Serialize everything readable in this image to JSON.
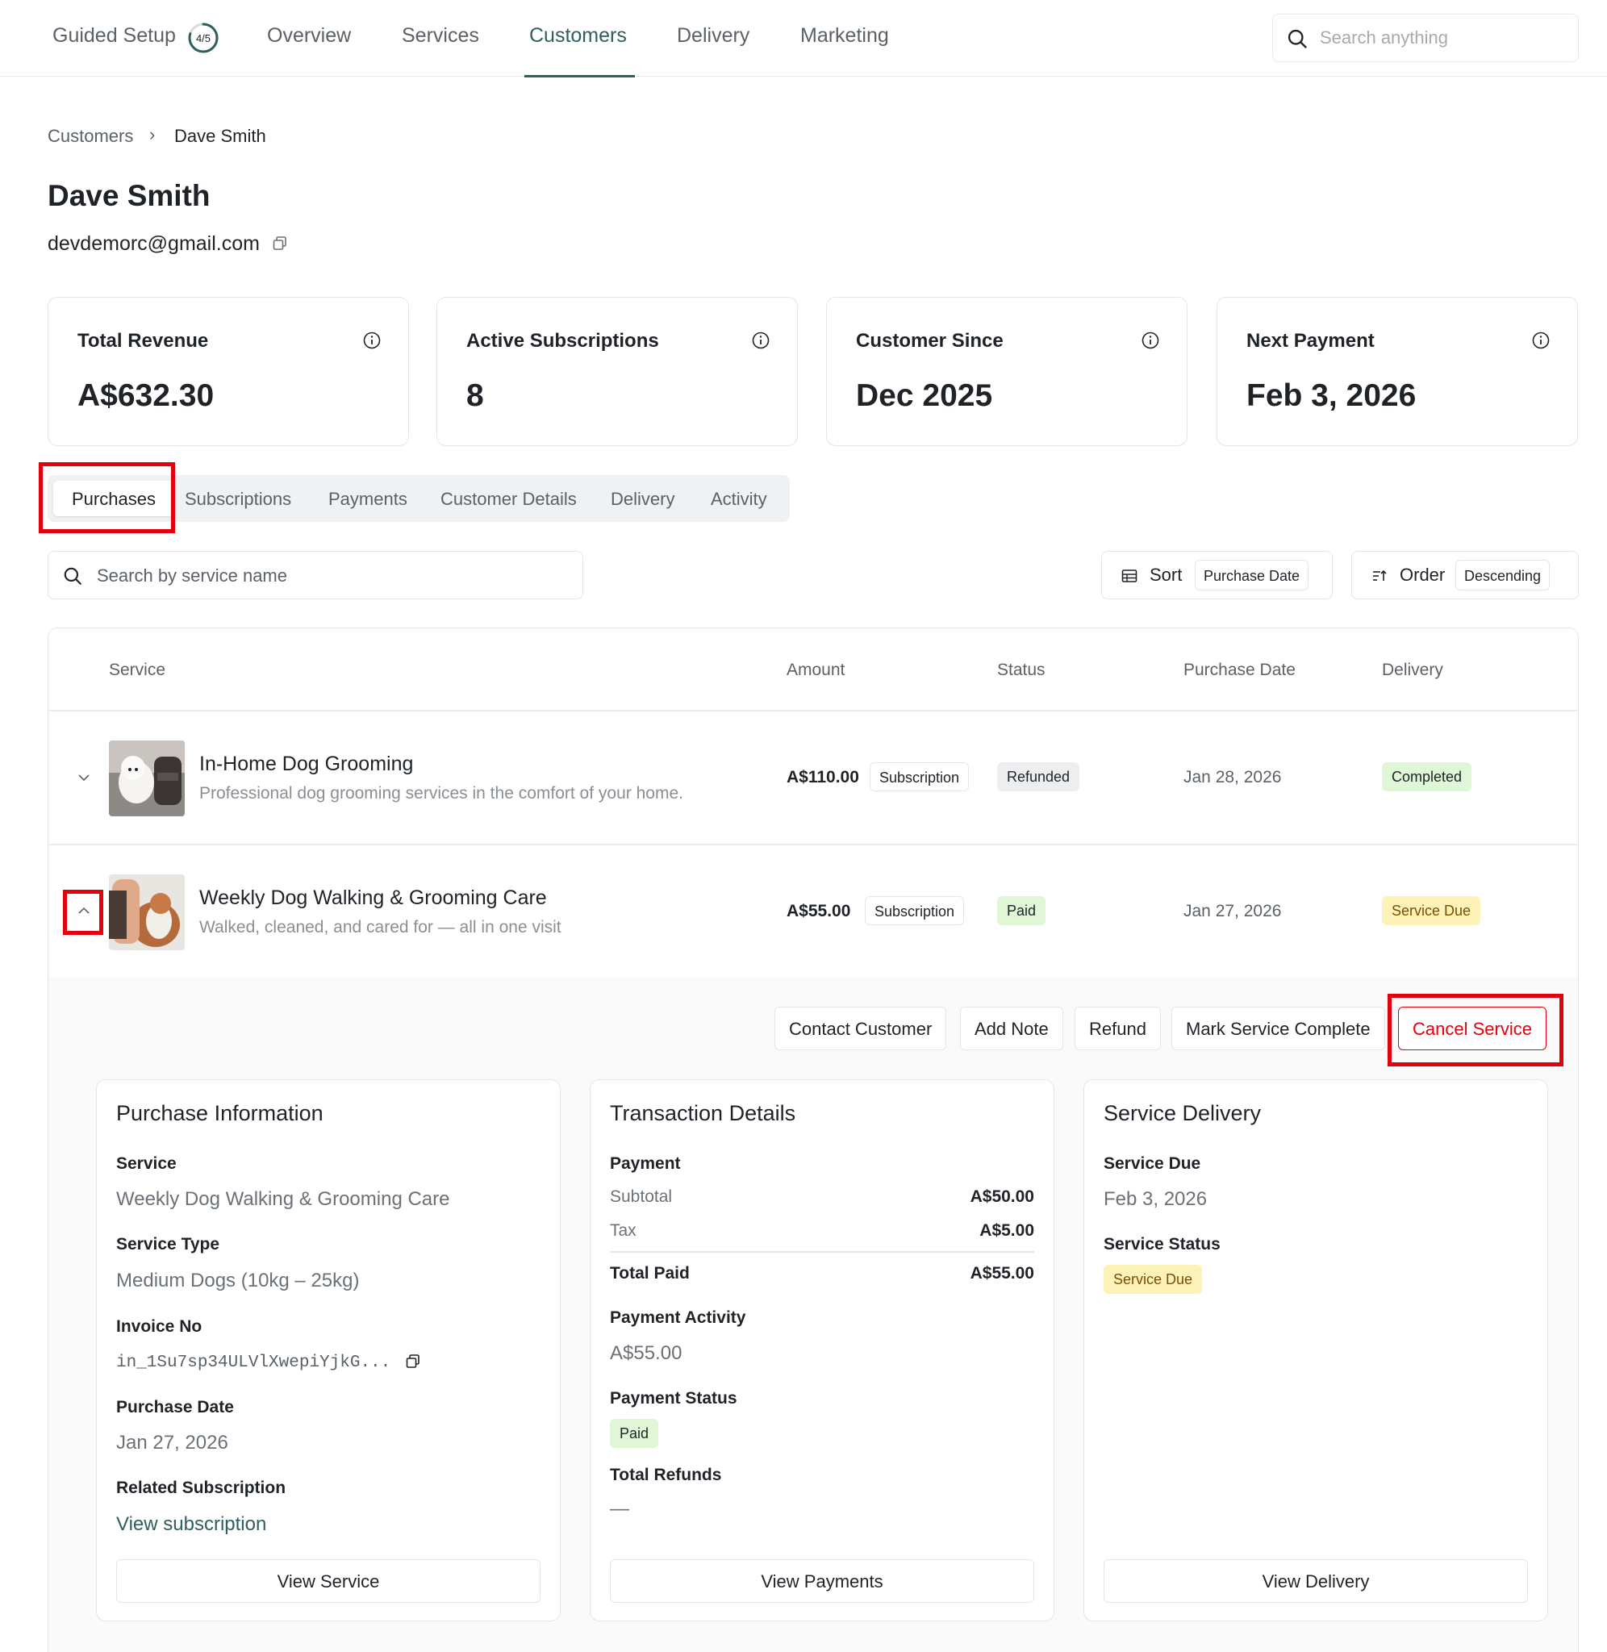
{
  "nav": {
    "guided_setup": "Guided Setup",
    "setup_progress": "4/5",
    "setup_fraction": 0.8,
    "items": [
      "Overview",
      "Services",
      "Customers",
      "Delivery",
      "Marketing"
    ],
    "active": "Customers",
    "search_placeholder": "Search anything"
  },
  "breadcrumb": {
    "parent": "Customers",
    "separator": "›",
    "current": "Dave Smith"
  },
  "customer": {
    "name": "Dave Smith",
    "email": "devdemorc@gmail.com"
  },
  "stats": [
    {
      "label": "Total Revenue",
      "value": "A$632.30"
    },
    {
      "label": "Active Subscriptions",
      "value": "8"
    },
    {
      "label": "Customer Since",
      "value": "Dec 2025"
    },
    {
      "label": "Next Payment",
      "value": "Feb 3, 2026"
    }
  ],
  "tabs": [
    "Purchases",
    "Subscriptions",
    "Payments",
    "Customer Details",
    "Delivery",
    "Activity"
  ],
  "active_tab": "Purchases",
  "search": {
    "placeholder": "Search by service name"
  },
  "sort": {
    "label": "Sort",
    "value": "Purchase Date"
  },
  "order": {
    "label": "Order",
    "value": "Descending"
  },
  "table": {
    "headers": [
      "Service",
      "Amount",
      "Status",
      "Purchase Date",
      "Delivery"
    ],
    "rows": [
      {
        "name": "In-Home Dog Grooming",
        "description": "Professional dog grooming services in the comfort of your home.",
        "amount": "A$110.00",
        "type": "Subscription",
        "status": "Refunded",
        "purchase_date": "Jan 28, 2026",
        "delivery": "Completed"
      },
      {
        "name": "Weekly Dog Walking & Grooming Care",
        "description": "Walked, cleaned, and cared for — all in one visit",
        "amount": "A$55.00",
        "type": "Subscription",
        "status": "Paid",
        "purchase_date": "Jan 27, 2026",
        "delivery": "Service Due"
      }
    ]
  },
  "actions": [
    "Contact Customer",
    "Add Note",
    "Refund",
    "Mark Service Complete",
    "Cancel Service"
  ],
  "purchase_info": {
    "title": "Purchase Information",
    "service_label": "Service",
    "service": "Weekly Dog Walking & Grooming Care",
    "type_label": "Service Type",
    "type": "Medium Dogs (10kg – 25kg)",
    "invoice_label": "Invoice No",
    "invoice": "in_1Su7sp34ULVlXwepiYjkG...",
    "date_label": "Purchase Date",
    "date": "Jan 27, 2026",
    "related_label": "Related Subscription",
    "related_link": "View subscription",
    "button": "View Service"
  },
  "transaction": {
    "title": "Transaction Details",
    "payment_label": "Payment",
    "subtotal_label": "Subtotal",
    "subtotal": "A$50.00",
    "tax_label": "Tax",
    "tax": "A$5.00",
    "total_label": "Total Paid",
    "total": "A$55.00",
    "activity_label": "Payment Activity",
    "activity": "A$55.00",
    "status_label": "Payment Status",
    "status": "Paid",
    "refunds_label": "Total Refunds",
    "refunds": "—",
    "button": "View Payments"
  },
  "delivery": {
    "title": "Service Delivery",
    "due_label": "Service Due",
    "due": "Feb 3, 2026",
    "status_label": "Service Status",
    "status": "Service Due",
    "button": "View Delivery"
  },
  "colors": {
    "accent": "#2f5f5d",
    "highlight": "#e4000f",
    "paid": "#dff7d6",
    "due": "#fdf2b8"
  }
}
